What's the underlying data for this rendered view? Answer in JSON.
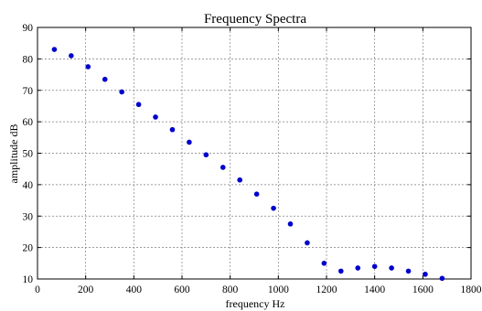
{
  "chart_data": {
    "type": "scatter",
    "title": "Frequency Spectra",
    "xlabel": "frequency Hz",
    "ylabel": "amplitude dB",
    "xlim": [
      0,
      1800
    ],
    "ylim": [
      10,
      90
    ],
    "xticks": [
      0,
      200,
      400,
      600,
      800,
      1000,
      1200,
      1400,
      1600,
      1800
    ],
    "yticks": [
      10,
      20,
      30,
      40,
      50,
      60,
      70,
      80,
      90
    ],
    "grid": true,
    "marker_color": "#0000cc",
    "series": [
      {
        "x": [
          70,
          140,
          210,
          280,
          350,
          420,
          490,
          560,
          630,
          700,
          770,
          840,
          910,
          980,
          1050,
          1120,
          1190,
          1260,
          1330,
          1400,
          1470,
          1540,
          1610,
          1680
        ],
        "y": [
          83,
          81,
          77.5,
          73.5,
          69.5,
          65.5,
          61.5,
          57.5,
          53.5,
          49.5,
          45.5,
          41.5,
          37,
          32.5,
          27.5,
          21.5,
          15,
          12.5,
          13.5,
          14,
          13.5,
          12.5,
          11.5,
          10.2
        ]
      }
    ]
  }
}
